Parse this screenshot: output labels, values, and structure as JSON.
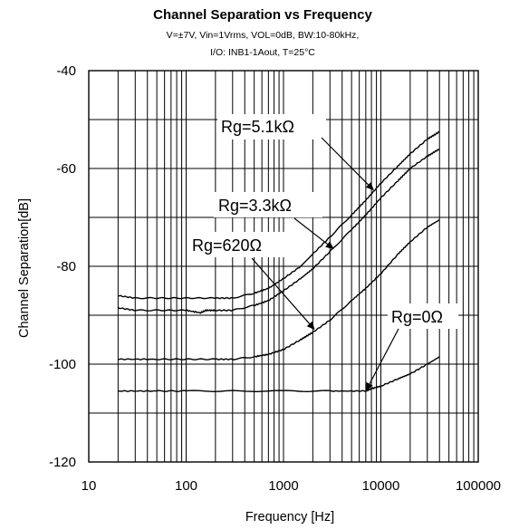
{
  "chart_data": {
    "type": "line",
    "title": "Channel Separation vs Frequency",
    "subtitle_lines": [
      "V=±7V, Vin=1Vrms, VOL=0dB, BW:10-80kHz,",
      "I/O: INB1-1Aout, T=25°C"
    ],
    "xlabel": "Frequency [Hz]",
    "ylabel": "Channel Separation[dB]",
    "xscale": "log",
    "xlim": [
      10,
      100000
    ],
    "ylim": [
      -120,
      -40
    ],
    "x_ticks": [
      10,
      100,
      1000,
      10000,
      100000
    ],
    "x_tick_labels": [
      "10",
      "100",
      "1000",
      "10000",
      "100000"
    ],
    "y_ticks": [
      -120,
      -100,
      -80,
      -60,
      -40
    ],
    "y_tick_labels": [
      "-120",
      "-100",
      "-80",
      "-60",
      "-40"
    ],
    "y_minor_step": 10,
    "grid": true,
    "series": [
      {
        "name": "Rg=5.1kΩ",
        "x": [
          20,
          30,
          50,
          100,
          200,
          300,
          500,
          700,
          1000,
          1500,
          2000,
          3000,
          5000,
          7000,
          10000,
          15000,
          20000,
          30000,
          40000
        ],
        "y": [
          -86,
          -86.5,
          -86.5,
          -86.5,
          -86.5,
          -86.5,
          -85.5,
          -84.5,
          -82.5,
          -80,
          -77.5,
          -74,
          -69.5,
          -66.5,
          -63,
          -59.5,
          -57,
          -54,
          -52.5
        ]
      },
      {
        "name": "Rg=3.3kΩ",
        "x": [
          20,
          30,
          50,
          100,
          140,
          160,
          200,
          300,
          500,
          700,
          1000,
          1500,
          2000,
          3000,
          5000,
          7000,
          10000,
          15000,
          20000,
          30000,
          40000
        ],
        "y": [
          -88.5,
          -89,
          -89,
          -89,
          -89.5,
          -89,
          -89,
          -89,
          -88,
          -87,
          -85,
          -82.5,
          -80.5,
          -77,
          -72.5,
          -69.5,
          -66,
          -62.5,
          -60,
          -57.5,
          -56
        ]
      },
      {
        "name": "Rg=620Ω",
        "x": [
          20,
          50,
          100,
          200,
          300,
          500,
          700,
          1000,
          1500,
          2000,
          3000,
          5000,
          7000,
          10000,
          15000,
          20000,
          30000,
          40000
        ],
        "y": [
          -99,
          -99,
          -99,
          -99,
          -99,
          -98.5,
          -98,
          -97,
          -95,
          -93.5,
          -91,
          -87,
          -84.5,
          -81.5,
          -77.5,
          -75,
          -72,
          -70.5
        ]
      },
      {
        "name": "Rg=0Ω",
        "x": [
          20,
          50,
          100,
          300,
          1000,
          3000,
          7000,
          8000,
          10000,
          15000,
          20000,
          30000,
          40000
        ],
        "y": [
          -105.5,
          -105.5,
          -105.5,
          -105.5,
          -105.5,
          -105.5,
          -105.5,
          -105,
          -104.5,
          -103,
          -102,
          -100,
          -98.5
        ]
      }
    ],
    "annotations": [
      {
        "text": "Rg=5.1kΩ",
        "points_to": [
          8500,
          -64.5
        ]
      },
      {
        "text": "Rg=3.3kΩ",
        "points_to": [
          3300,
          -76.5
        ]
      },
      {
        "text": "Rg=620Ω",
        "points_to": [
          2100,
          -93
        ]
      },
      {
        "text": "Rg=0Ω",
        "points_to": [
          7000,
          -105.5
        ]
      }
    ]
  }
}
